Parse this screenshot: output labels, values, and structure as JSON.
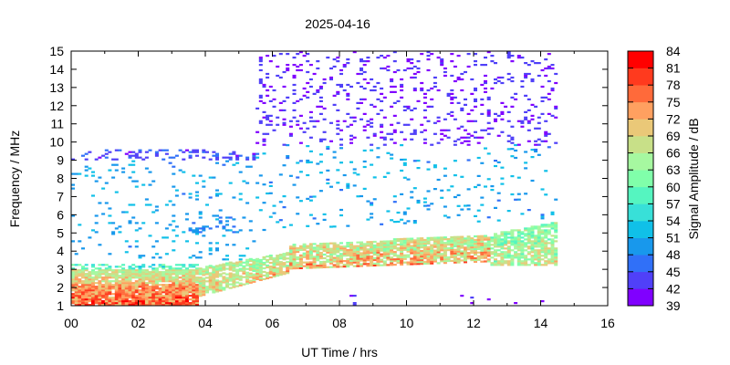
{
  "chart_data": {
    "type": "heatmap",
    "title": "2025-04-16",
    "xlabel": "UT Time / hrs",
    "ylabel": "Frequency / MHz",
    "colorbar_label": "Signal Amplitude / dB",
    "xlim": [
      0,
      16
    ],
    "ylim": [
      1,
      15
    ],
    "x_ticks": [
      "00",
      "02",
      "04",
      "06",
      "08",
      "10",
      "12",
      "14",
      "16"
    ],
    "y_ticks": [
      "1",
      "2",
      "3",
      "4",
      "5",
      "6",
      "7",
      "8",
      "9",
      "10",
      "11",
      "12",
      "13",
      "14",
      "15"
    ],
    "colorbar_ticks": [
      "39",
      "42",
      "45",
      "48",
      "51",
      "54",
      "57",
      "60",
      "63",
      "66",
      "69",
      "72",
      "75",
      "78",
      "81",
      "84"
    ],
    "color_range": [
      39,
      84
    ],
    "color_step": 3,
    "colors": [
      "#8000ff",
      "#5040f8",
      "#3070f8",
      "#1898ec",
      "#10c0e8",
      "#38e0d8",
      "#55f5c0",
      "#80ffaa",
      "#a6f8a0",
      "#c8e088",
      "#eac878",
      "#ffa060",
      "#ff6a3a",
      "#ff3a1e",
      "#ff0000"
    ],
    "cell_size": {
      "hours": 0.1,
      "mhz": 0.1
    },
    "regions": [
      {
        "t": [
          0,
          3.8
        ],
        "f_lo": [
          1.0,
          1.0
        ],
        "f_hi": [
          2.2,
          2.2
        ],
        "amp": [
          64,
          84
        ],
        "density": 0.95
      },
      {
        "t": [
          0,
          3.8
        ],
        "f_lo": [
          2.2,
          2.2
        ],
        "f_hi": [
          3.0,
          3.0
        ],
        "amp": [
          58,
          76
        ],
        "density": 0.9
      },
      {
        "t": [
          0,
          3.8
        ],
        "f_lo": [
          3.0,
          3.0
        ],
        "f_hi": [
          3.3,
          3.3
        ],
        "amp": [
          48,
          62
        ],
        "density": 0.45
      },
      {
        "t": [
          3.6,
          6.5
        ],
        "f_lo": [
          1.4,
          2.8
        ],
        "f_hi": [
          3.0,
          3.9
        ],
        "amp": [
          56,
          76
        ],
        "density": 0.85
      },
      {
        "t": [
          6.5,
          12.5
        ],
        "f_lo": [
          3.0,
          3.4
        ],
        "f_hi": [
          4.3,
          4.9
        ],
        "amp": [
          55,
          80
        ],
        "density": 0.85
      },
      {
        "t": [
          12.5,
          14.5
        ],
        "f_lo": [
          3.2,
          3.2
        ],
        "f_hi": [
          4.9,
          5.6
        ],
        "amp": [
          52,
          74
        ],
        "density": 0.8
      },
      {
        "t": [
          0,
          5.5
        ],
        "f_lo": [
          3.5,
          3.5
        ],
        "f_hi": [
          9.0,
          9.0
        ],
        "amp": [
          45,
          53
        ],
        "density": 0.07
      },
      {
        "t": [
          3.4,
          5.0
        ],
        "f_lo": [
          5.0,
          5.0
        ],
        "f_hi": [
          6.0,
          6.0
        ],
        "amp": [
          45,
          50
        ],
        "density": 0.25
      },
      {
        "t": [
          0,
          5.5
        ],
        "f_lo": [
          9.0,
          9.0
        ],
        "f_hi": [
          9.6,
          9.6
        ],
        "amp": [
          39,
          47
        ],
        "density": 0.3
      },
      {
        "t": [
          5.5,
          14.5
        ],
        "f_lo": [
          5.0,
          5.8
        ],
        "f_hi": [
          9.8,
          9.8
        ],
        "amp": [
          44,
          54
        ],
        "density": 0.06
      },
      {
        "t": [
          5.5,
          14.5
        ],
        "f_lo": [
          9.8,
          9.8
        ],
        "f_hi": [
          15.0,
          15.0
        ],
        "amp": [
          39,
          44
        ],
        "density": 0.12
      },
      {
        "t": [
          8,
          14.2
        ],
        "f_lo": [
          1.0,
          1.0
        ],
        "f_hi": [
          1.6,
          1.6
        ],
        "amp": [
          39,
          43
        ],
        "density": 0.03
      }
    ]
  }
}
